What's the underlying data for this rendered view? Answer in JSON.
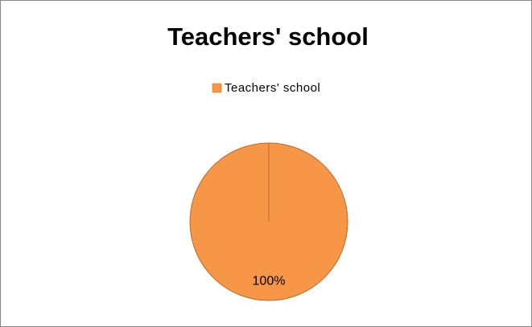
{
  "chart_data": {
    "type": "pie",
    "title": "Teachers' school",
    "categories": [
      "Teachers' school"
    ],
    "values": [
      100
    ],
    "value_labels": [
      "100%"
    ],
    "colors": [
      "#f79646"
    ],
    "legend": "top"
  }
}
